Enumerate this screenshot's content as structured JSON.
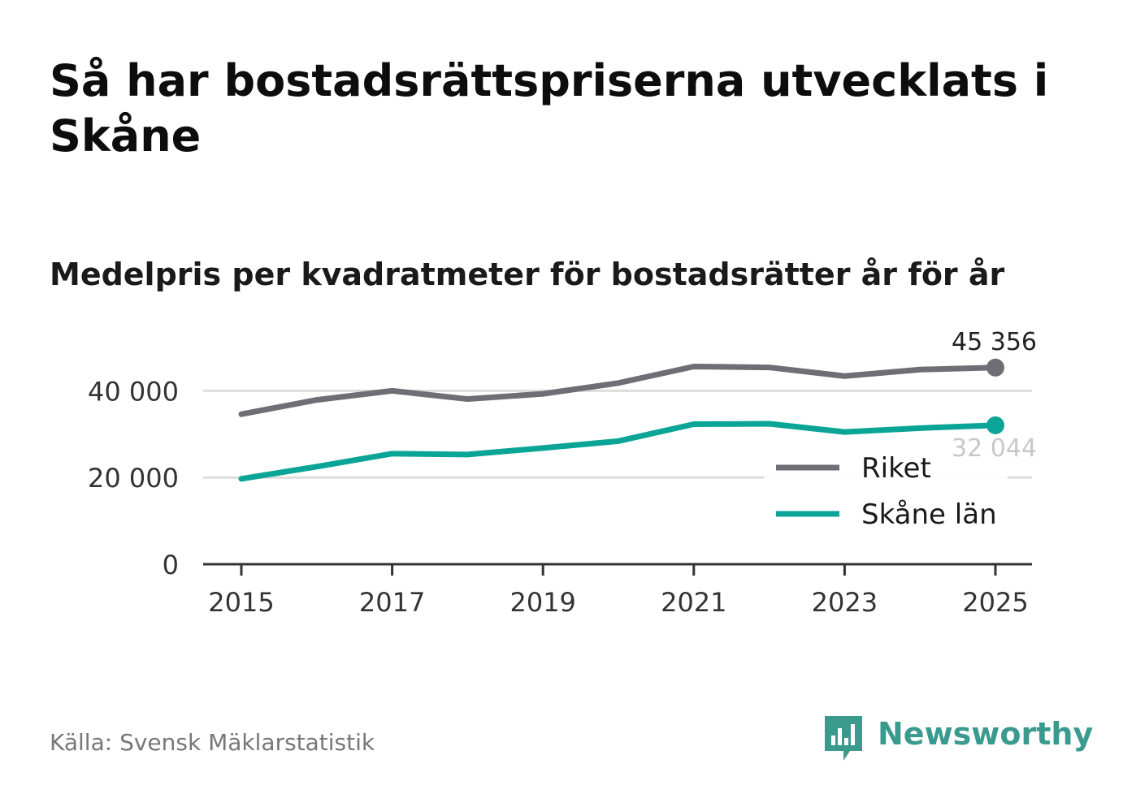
{
  "title": "Så har bostadsrättspriserna utvecklats i Skåne",
  "subtitle": "Medelpris per kvadratmeter för bostadsrätter år för år",
  "source": "Källa: Svensk Mäklarstatistik",
  "brand": "Newsworthy",
  "colors": {
    "riket": "#6e6e74",
    "skane": "#0aa596",
    "grid": "#dddddd",
    "axis": "#333333",
    "brand": "#3a9a8e"
  },
  "chart_data": {
    "type": "line",
    "title": "Medelpris per kvadratmeter för bostadsrätter år för år",
    "x": [
      2015,
      2016,
      2017,
      2018,
      2019,
      2020,
      2021,
      2022,
      2023,
      2024,
      2025
    ],
    "series": [
      {
        "name": "Riket",
        "values": [
          34600,
          37900,
          40000,
          38100,
          39300,
          41800,
          45600,
          45400,
          43400,
          44900,
          45356
        ]
      },
      {
        "name": "Skåne län",
        "values": [
          19700,
          22500,
          25500,
          25300,
          26800,
          28400,
          32300,
          32400,
          30500,
          31400,
          32044
        ]
      }
    ],
    "end_labels": [
      "45 356",
      "32 044"
    ],
    "yticks": [
      0,
      20000,
      40000
    ],
    "ytick_labels": [
      "0",
      "20 000",
      "40 000"
    ],
    "xticks": [
      2015,
      2017,
      2019,
      2021,
      2023,
      2025
    ],
    "xtick_labels": [
      "2015",
      "2017",
      "2019",
      "2021",
      "2023",
      "2025"
    ],
    "ylim": [
      0,
      50000
    ],
    "legend": [
      "Riket",
      "Skåne län"
    ],
    "legend_position": "bottom-right",
    "grid": true
  }
}
